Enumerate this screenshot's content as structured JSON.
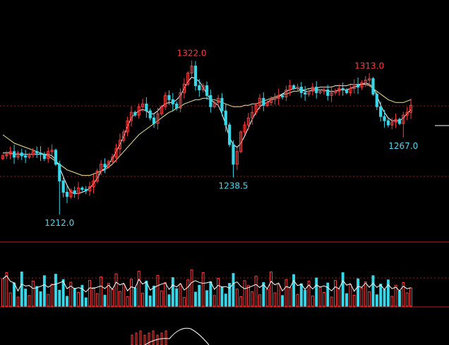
{
  "chart_data": {
    "type": "candlestick",
    "title": "",
    "xlabel": "",
    "ylabel": "",
    "grid": true,
    "ylim": [
      1195,
      1345
    ],
    "colors": {
      "up": "#ff3b3b",
      "down": "#36d7e8",
      "ma_short": "#ffffff",
      "ma_long": "#f0e68c",
      "grid": "#a01818",
      "separator": "#c21a1a",
      "label_high": "#ff3b3b",
      "label_low": "#4fd6f0"
    },
    "annotations": [
      {
        "text": "1322.0",
        "index": 50,
        "value": 1322.0,
        "kind": "high"
      },
      {
        "text": "1313.0",
        "index": 97,
        "value": 1313.0,
        "kind": "high"
      },
      {
        "text": "1212.0",
        "index": 15,
        "value": 1212.0,
        "kind": "low"
      },
      {
        "text": "1238.5",
        "index": 61,
        "value": 1238.5,
        "kind": "low"
      },
      {
        "text": "1267.0",
        "index": 106,
        "value": 1267.0,
        "kind": "low"
      }
    ],
    "closes": [
      1254,
      1255,
      1257,
      1253,
      1256,
      1254,
      1253,
      1255,
      1257,
      1256,
      1255,
      1252,
      1257,
      1258,
      1248,
      1236,
      1228,
      1225,
      1229,
      1227,
      1231,
      1230,
      1229,
      1232,
      1236,
      1243,
      1248,
      1246,
      1250,
      1253,
      1259,
      1265,
      1271,
      1279,
      1285,
      1283,
      1289,
      1291,
      1286,
      1281,
      1277,
      1284,
      1289,
      1297,
      1294,
      1291,
      1288,
      1299,
      1305,
      1313,
      1318,
      1304,
      1301,
      1304,
      1297,
      1289,
      1292,
      1295,
      1286,
      1276,
      1262,
      1248,
      1257,
      1271,
      1276,
      1281,
      1285,
      1290,
      1295,
      1290,
      1292,
      1294,
      1295,
      1297,
      1296,
      1301,
      1304,
      1302,
      1303,
      1299,
      1298,
      1300,
      1303,
      1299,
      1300,
      1301,
      1297,
      1299,
      1300,
      1302,
      1301,
      1299,
      1302,
      1305,
      1303,
      1306,
      1308,
      1309,
      1298,
      1289,
      1282,
      1279,
      1276,
      1278,
      1280,
      1277,
      1283,
      1285,
      1290
    ],
    "ma_short": [
      1256,
      1256,
      1256,
      1255,
      1255,
      1255,
      1255,
      1255,
      1255,
      1255,
      1255,
      1255,
      1255,
      1254,
      1251,
      1246,
      1239,
      1233,
      1228,
      1227,
      1227,
      1228,
      1229,
      1231,
      1234,
      1238,
      1243,
      1245,
      1248,
      1252,
      1257,
      1262,
      1268,
      1275,
      1281,
      1284,
      1286,
      1287,
      1286,
      1284,
      1284,
      1286,
      1289,
      1291,
      1292,
      1292,
      1294,
      1297,
      1302,
      1307,
      1310,
      1309,
      1307,
      1303,
      1298,
      1294,
      1292,
      1290,
      1284,
      1276,
      1267,
      1262,
      1260,
      1263,
      1268,
      1274,
      1280,
      1285,
      1289,
      1291,
      1292,
      1294,
      1295,
      1296,
      1298,
      1300,
      1301,
      1302,
      1302,
      1301,
      1300,
      1300,
      1301,
      1301,
      1301,
      1301,
      1300,
      1300,
      1300,
      1301,
      1301,
      1301,
      1302,
      1303,
      1304,
      1305,
      1306,
      1305,
      1303,
      1297,
      1290,
      1285,
      1281,
      1279,
      1279,
      1279,
      1281,
      1284,
      1287
    ],
    "ma_long": [
      1269,
      1267,
      1265,
      1263,
      1262,
      1261,
      1260,
      1259,
      1258,
      1257,
      1256,
      1255,
      1254,
      1252,
      1250,
      1248,
      1246,
      1244,
      1243,
      1242,
      1241,
      1240,
      1240,
      1240,
      1241,
      1242,
      1243,
      1244,
      1246,
      1248,
      1251,
      1254,
      1257,
      1260,
      1263,
      1266,
      1269,
      1271,
      1273,
      1275,
      1277,
      1279,
      1281,
      1283,
      1285,
      1286,
      1288,
      1289,
      1291,
      1292,
      1293,
      1294,
      1294,
      1295,
      1295,
      1294,
      1294,
      1293,
      1292,
      1291,
      1290,
      1289,
      1289,
      1289,
      1290,
      1290,
      1291,
      1291,
      1292,
      1293,
      1294,
      1295,
      1296,
      1297,
      1298,
      1298,
      1299,
      1300,
      1300,
      1301,
      1301,
      1302,
      1302,
      1302,
      1303,
      1303,
      1303,
      1303,
      1304,
      1304,
      1304,
      1304,
      1305,
      1305,
      1305,
      1305,
      1305,
      1304,
      1302,
      1300,
      1298,
      1296,
      1294,
      1293,
      1292,
      1292,
      1292,
      1293,
      1294
    ],
    "volume": [
      72,
      88,
      35,
      61,
      24,
      90,
      45,
      28,
      66,
      52,
      38,
      80,
      31,
      58,
      84,
      42,
      70,
      26,
      63,
      47,
      36,
      55,
      22,
      68,
      49,
      33,
      77,
      29,
      60,
      44,
      85,
      39,
      57,
      25,
      71,
      48,
      92,
      34,
      66,
      27,
      53,
      81,
      40,
      62,
      30,
      75,
      46,
      58,
      23,
      69,
      95,
      37,
      55,
      88,
      41,
      64,
      28,
      73,
      50,
      32,
      60,
      86,
      45,
      25,
      67,
      54,
      38,
      79,
      30,
      62,
      44,
      90,
      35,
      57,
      28,
      70,
      48,
      83,
      31,
      59,
      42,
      66,
      27,
      74,
      50,
      36,
      61,
      24,
      68,
      45,
      88,
      33,
      56,
      29,
      72,
      47,
      64,
      38,
      80,
      30,
      58,
      43,
      69,
      26,
      55,
      40,
      62,
      35,
      48
    ],
    "volume_ylim": [
      0,
      100
    ]
  }
}
